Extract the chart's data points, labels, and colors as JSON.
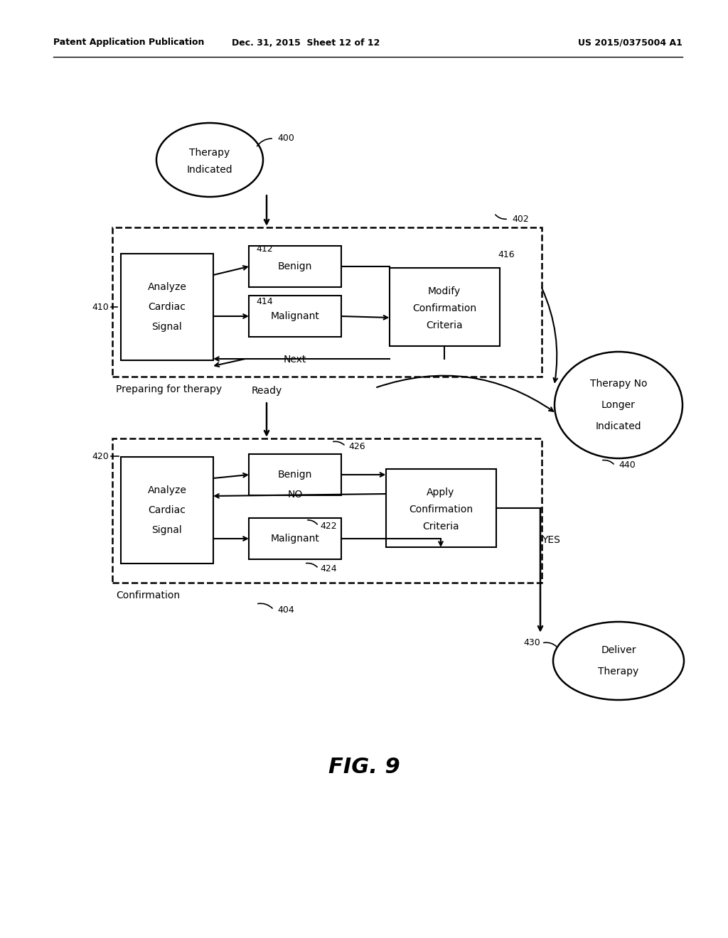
{
  "header_left": "Patent Application Publication",
  "header_mid": "Dec. 31, 2015  Sheet 12 of 12",
  "header_right": "US 2015/0375004 A1",
  "fig_label": "FIG. 9",
  "bg_color": "#ffffff",
  "line_color": "#000000",
  "text_color": "#000000"
}
